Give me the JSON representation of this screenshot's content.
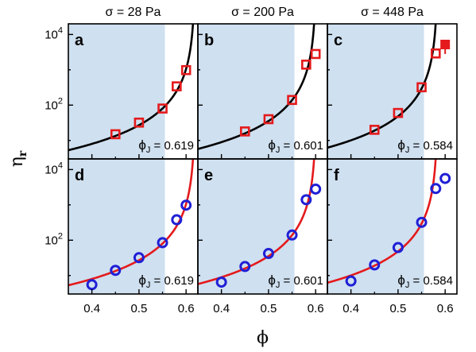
{
  "chart_data": {
    "type": "scatter",
    "x_axis_label": "ϕ",
    "y_axis_label": "η",
    "y_axis_label_subscript": "r",
    "x_range": [
      0.35,
      0.625
    ],
    "x_ticks": [
      "0.4",
      "0.5",
      "0.6"
    ],
    "x_tick_values": [
      0.4,
      0.5,
      0.6
    ],
    "y_scale": "log",
    "y_range": [
      3,
      20000
    ],
    "y_tick_labels": [
      {
        "value": 100,
        "base": "10",
        "exp": "2"
      },
      {
        "value": 10000,
        "base": "10",
        "exp": "4"
      }
    ],
    "shaded_region_x": [
      0.35,
      0.555
    ],
    "shade_color": "#cfe0f0",
    "column_titles": [
      "σ = 28 Pa",
      "σ = 200 Pa",
      "σ = 448 Pa"
    ],
    "colors": {
      "top_marker": "#e41a1c",
      "bottom_marker": "#1f1fd6",
      "top_curve": "#000000",
      "bottom_curve": "#e41a1c"
    },
    "panels": [
      {
        "letter": "a",
        "row": 0,
        "col": 0,
        "marker": "square",
        "phi_j_label": "ϕ",
        "phi_j_sub": "J",
        "phi_j_value": "= 0.619",
        "phi_j": 0.619,
        "points": [
          [
            0.45,
            15
          ],
          [
            0.5,
            32
          ],
          [
            0.55,
            80
          ],
          [
            0.58,
            340
          ],
          [
            0.6,
            980
          ]
        ]
      },
      {
        "letter": "b",
        "row": 0,
        "col": 1,
        "marker": "square",
        "phi_j_label": "ϕ",
        "phi_j_sub": "J",
        "phi_j_value": "= 0.601",
        "phi_j": 0.601,
        "points": [
          [
            0.45,
            18
          ],
          [
            0.5,
            40
          ],
          [
            0.55,
            140
          ],
          [
            0.58,
            1400
          ],
          [
            0.6,
            2800
          ]
        ]
      },
      {
        "letter": "c",
        "row": 0,
        "col": 2,
        "marker": "square",
        "phi_j_label": "ϕ",
        "phi_j_sub": "J",
        "phi_j_value": "= 0.584",
        "phi_j": 0.584,
        "points": [
          [
            0.45,
            20
          ],
          [
            0.5,
            60
          ],
          [
            0.55,
            320
          ],
          [
            0.58,
            2900
          ]
        ],
        "filled_points": [
          [
            0.6,
            5200
          ]
        ]
      },
      {
        "letter": "d",
        "row": 1,
        "col": 0,
        "marker": "circle",
        "phi_j_label": "ϕ",
        "phi_j_sub": "J",
        "phi_j_value": "= 0.619",
        "phi_j": 0.619,
        "points": [
          [
            0.4,
            5.5
          ],
          [
            0.45,
            14
          ],
          [
            0.5,
            32
          ],
          [
            0.55,
            85
          ],
          [
            0.58,
            380
          ],
          [
            0.6,
            980
          ]
        ]
      },
      {
        "letter": "e",
        "row": 1,
        "col": 1,
        "marker": "circle",
        "phi_j_label": "ϕ",
        "phi_j_sub": "J",
        "phi_j_value": "= 0.601",
        "phi_j": 0.601,
        "points": [
          [
            0.4,
            6.5
          ],
          [
            0.45,
            18
          ],
          [
            0.5,
            42
          ],
          [
            0.55,
            140
          ],
          [
            0.58,
            1400
          ],
          [
            0.6,
            2800
          ]
        ]
      },
      {
        "letter": "f",
        "row": 1,
        "col": 2,
        "marker": "circle",
        "phi_j_label": "ϕ",
        "phi_j_sub": "J",
        "phi_j_value": "= 0.584",
        "phi_j": 0.584,
        "points": [
          [
            0.4,
            7
          ],
          [
            0.45,
            20
          ],
          [
            0.5,
            62
          ],
          [
            0.55,
            320
          ],
          [
            0.58,
            2900
          ],
          [
            0.6,
            5600
          ]
        ]
      }
    ]
  }
}
